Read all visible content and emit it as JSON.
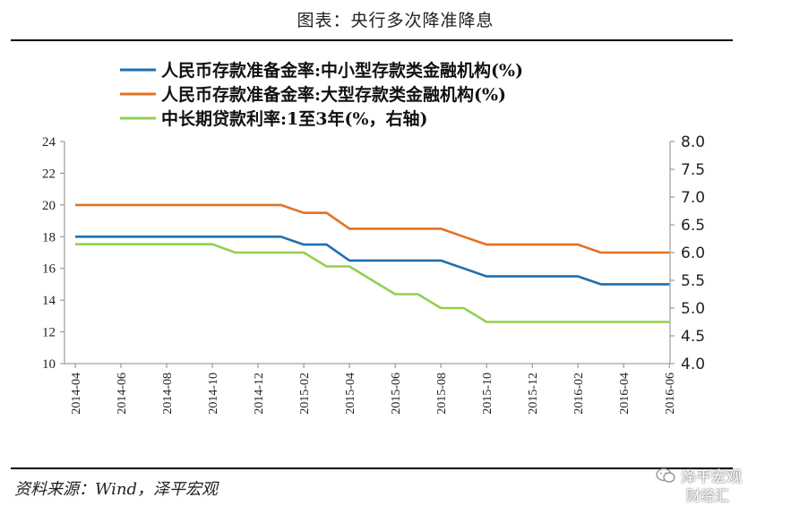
{
  "header": {
    "title": "图表：央行多次降准降息"
  },
  "footer": {
    "source": "资料来源：Wind，泽平宏观"
  },
  "watermark": {
    "brand": "泽平宏观",
    "brand2": "财经汇"
  },
  "chart_data": {
    "type": "line",
    "title": "",
    "x": [
      "2014-04",
      "2014-05",
      "2014-06",
      "2014-07",
      "2014-08",
      "2014-09",
      "2014-10",
      "2014-11",
      "2014-12",
      "2015-01",
      "2015-02",
      "2015-03",
      "2015-04",
      "2015-05",
      "2015-06",
      "2015-07",
      "2015-08",
      "2015-09",
      "2015-10",
      "2015-11",
      "2015-12",
      "2016-01",
      "2016-02",
      "2016-03",
      "2016-04",
      "2016-05",
      "2016-06"
    ],
    "x_tick_labels": [
      "2014-04",
      "2014-06",
      "2014-08",
      "2014-10",
      "2014-12",
      "2015-02",
      "2015-04",
      "2015-06",
      "2015-08",
      "2015-10",
      "2015-12",
      "2016-02",
      "2016-04",
      "2016-06"
    ],
    "y_left": {
      "ylim": [
        10,
        24
      ],
      "ticks": [
        "10",
        "12",
        "14",
        "16",
        "18",
        "20",
        "22",
        "24"
      ]
    },
    "y_right": {
      "ylim": [
        4.0,
        8.0
      ],
      "ticks": [
        "4.0",
        "4.5",
        "5.0",
        "5.5",
        "6.0",
        "6.5",
        "7.0",
        "7.5",
        "8.0"
      ]
    },
    "legend_position": "top",
    "grid": false,
    "series": [
      {
        "name": "人民币存款准备金率:中小型存款类金融机构(%)",
        "axis": "left",
        "color": "#1f6fb0",
        "points": [
          [
            "2014-04",
            18
          ],
          [
            "2015-01",
            18
          ],
          [
            "2015-02",
            17.5
          ],
          [
            "2015-03",
            17.5
          ],
          [
            "2015-04",
            16.5
          ],
          [
            "2015-08",
            16.5
          ],
          [
            "2015-09",
            16
          ],
          [
            "2015-10",
            15.5
          ],
          [
            "2016-02",
            15.5
          ],
          [
            "2016-03",
            15
          ],
          [
            "2016-06",
            15
          ]
        ]
      },
      {
        "name": "人民币存款准备金率:大型存款类金融机构(%)",
        "axis": "left",
        "color": "#e37222",
        "points": [
          [
            "2014-04",
            20
          ],
          [
            "2015-01",
            20
          ],
          [
            "2015-02",
            19.5
          ],
          [
            "2015-03",
            19.5
          ],
          [
            "2015-04",
            18.5
          ],
          [
            "2015-08",
            18.5
          ],
          [
            "2015-09",
            18
          ],
          [
            "2015-10",
            17.5
          ],
          [
            "2016-02",
            17.5
          ],
          [
            "2016-03",
            17
          ],
          [
            "2016-06",
            17
          ]
        ]
      },
      {
        "name": "中长期贷款利率:1至3年(%，右轴)",
        "axis": "right",
        "color": "#92d050",
        "points": [
          [
            "2014-04",
            6.15
          ],
          [
            "2014-10",
            6.15
          ],
          [
            "2014-11",
            6.0
          ],
          [
            "2015-02",
            6.0
          ],
          [
            "2015-03",
            5.75
          ],
          [
            "2015-04",
            5.75
          ],
          [
            "2015-05",
            5.5
          ],
          [
            "2015-06",
            5.25
          ],
          [
            "2015-07",
            5.25
          ],
          [
            "2015-08",
            5.0
          ],
          [
            "2015-09",
            5.0
          ],
          [
            "2015-10",
            4.75
          ],
          [
            "2016-06",
            4.75
          ]
        ]
      }
    ]
  }
}
